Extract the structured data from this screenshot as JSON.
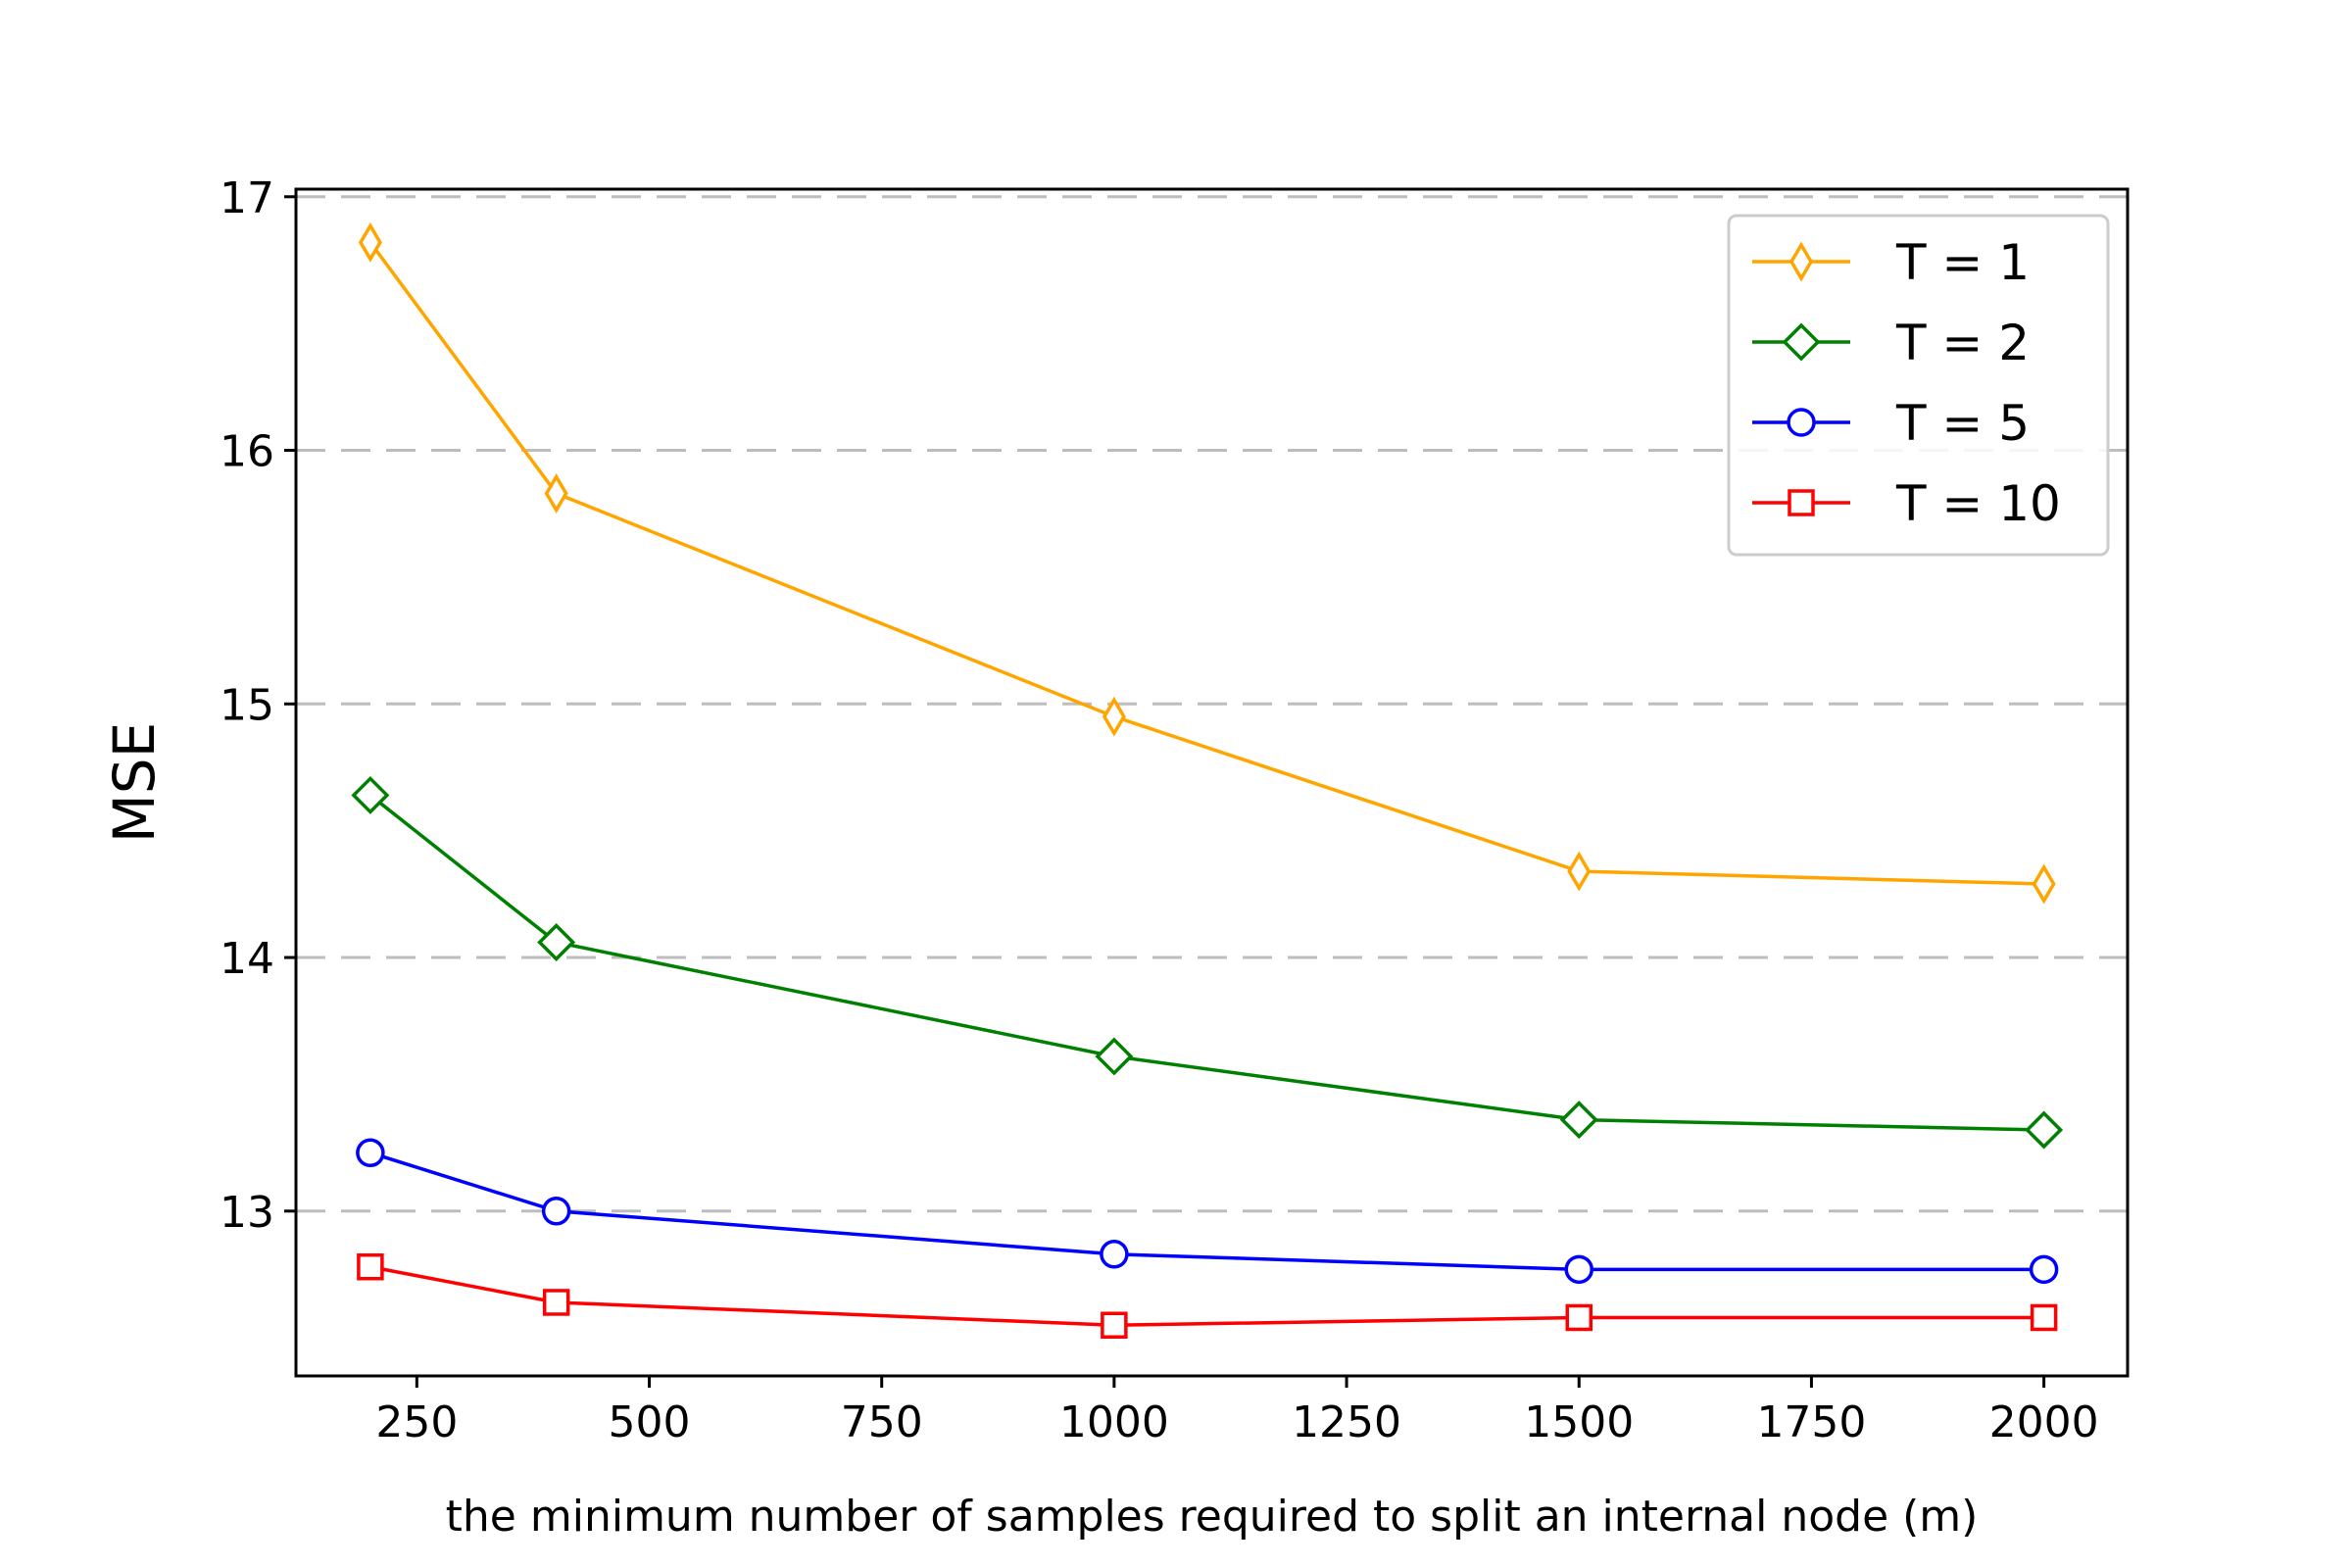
{
  "chart_data": {
    "type": "line",
    "title": "",
    "xlabel": "the minimum number of samples required to split an internal node (m)",
    "ylabel": "MSE",
    "xlim": [
      120,
      2090
    ],
    "ylim": [
      12.35,
      17.03
    ],
    "x_ticks": [
      250,
      500,
      750,
      1000,
      1250,
      1500,
      1750,
      2000
    ],
    "y_ticks": [
      13,
      14,
      15,
      16,
      17
    ],
    "grid": "horizontal-dashed",
    "legend_position": "top-right",
    "x": [
      200,
      400,
      1000,
      1500,
      2000
    ],
    "series": [
      {
        "name": "T = 1",
        "color": "#ffa500",
        "marker": "thin-diamond",
        "values": [
          16.82,
          15.83,
          14.95,
          14.34,
          14.29
        ]
      },
      {
        "name": "T = 2",
        "color": "#008000",
        "marker": "diamond",
        "values": [
          14.64,
          14.06,
          13.61,
          13.36,
          13.32
        ]
      },
      {
        "name": "T = 5",
        "color": "#0000ff",
        "marker": "circle",
        "values": [
          13.23,
          13.0,
          12.83,
          12.77,
          12.77
        ]
      },
      {
        "name": "T = 10",
        "color": "#ff0000",
        "marker": "square",
        "values": [
          12.78,
          12.64,
          12.55,
          12.58,
          12.58
        ]
      }
    ]
  }
}
